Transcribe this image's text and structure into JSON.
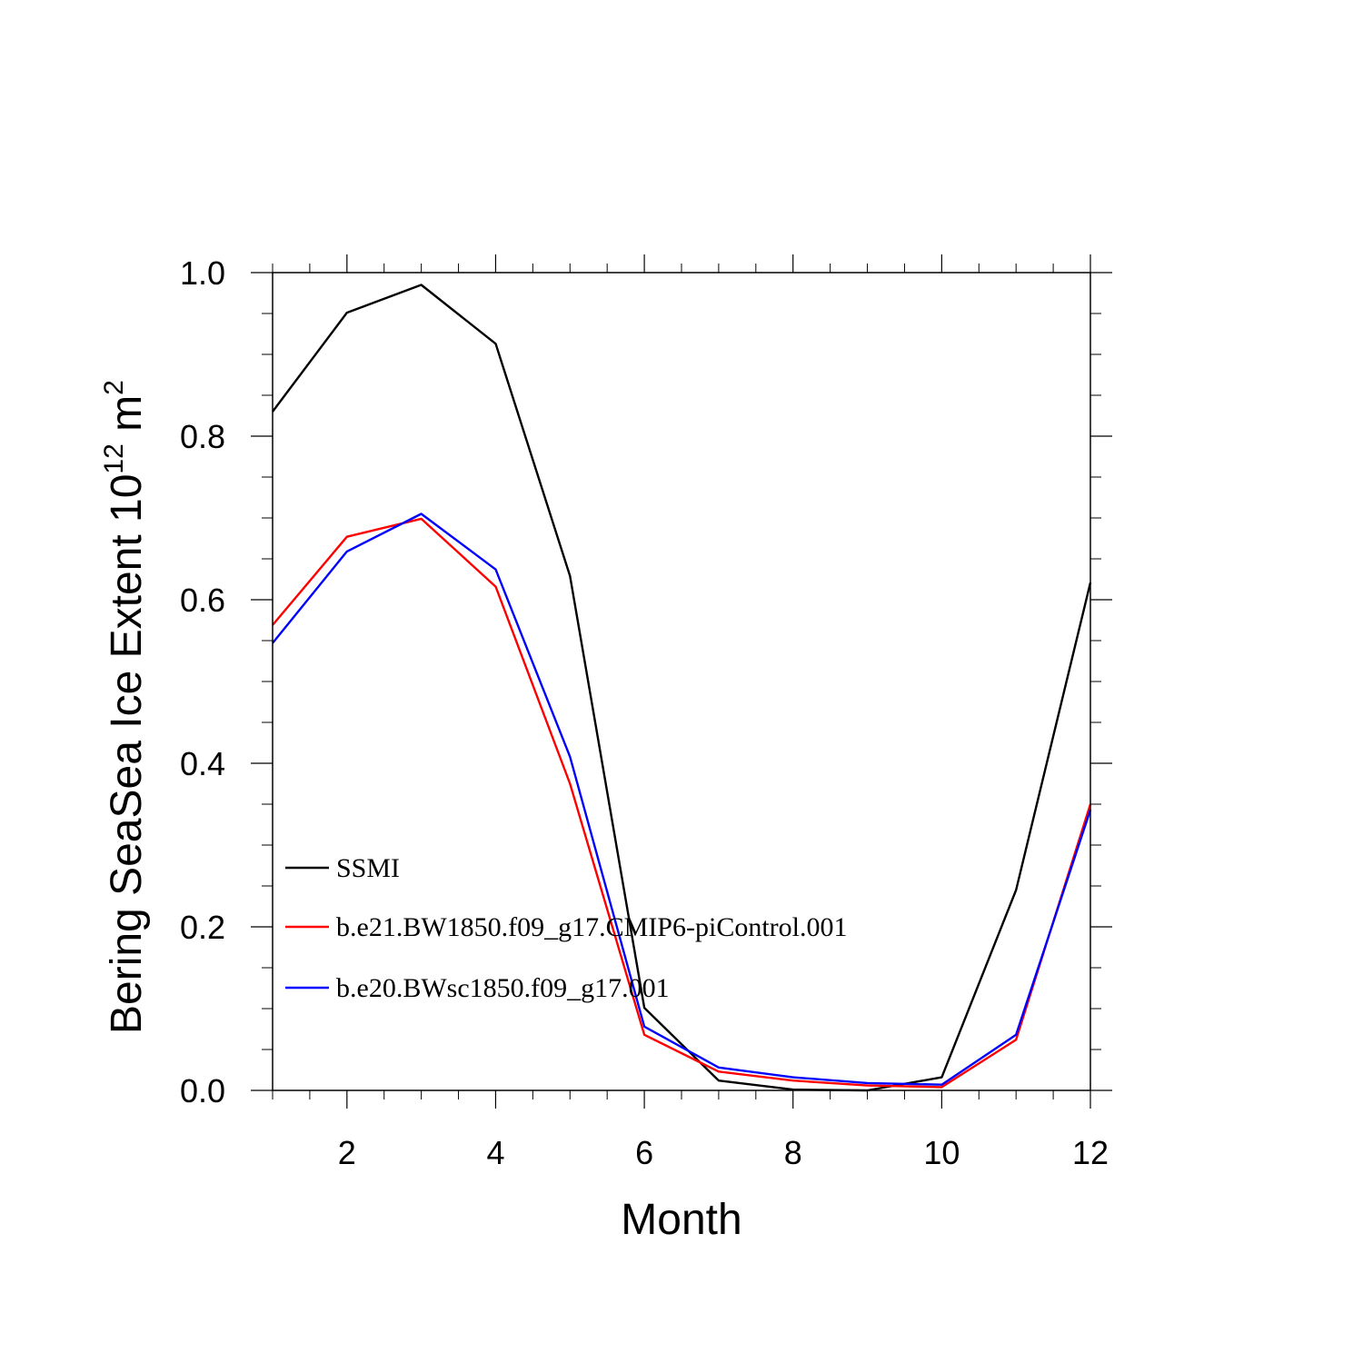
{
  "chart_data": {
    "type": "line",
    "title": "",
    "xlabel": "Month",
    "ylabel": {
      "prefix": "Bering SeaSea Ice Extent 10",
      "exponent1": "12",
      "unit": " m",
      "exponent2": "2"
    },
    "xlim": [
      1,
      12
    ],
    "ylim": [
      0,
      1
    ],
    "x_ticks": [
      2,
      4,
      6,
      8,
      10,
      12
    ],
    "x_tick_labels": [
      "2",
      "4",
      "6",
      "8",
      "10",
      "12"
    ],
    "y_ticks": [
      0,
      0.2,
      0.4,
      0.6,
      0.8,
      1.0
    ],
    "y_tick_labels": [
      "0.0",
      "0.2",
      "0.4",
      "0.6",
      "0.8",
      "1.0"
    ],
    "x": [
      1,
      2,
      3,
      4,
      5,
      6,
      7,
      8,
      9,
      10,
      11,
      12
    ],
    "series": [
      {
        "name": "SSMI",
        "color": "#000000",
        "values": [
          0.83,
          0.951,
          0.985,
          0.913,
          0.629,
          0.101,
          0.012,
          0.001,
          0.0,
          0.016,
          0.245,
          0.621
        ]
      },
      {
        "name": "b.e21.BW1850.f09_g17.CMIP6-piControl.001",
        "color": "#ff0000",
        "values": [
          0.569,
          0.677,
          0.699,
          0.616,
          0.375,
          0.068,
          0.023,
          0.012,
          0.006,
          0.004,
          0.062,
          0.35
        ]
      },
      {
        "name": "b.e20.BWsc1850.f09_g17.001",
        "color": "#0000ff",
        "values": [
          0.547,
          0.659,
          0.705,
          0.637,
          0.408,
          0.078,
          0.028,
          0.016,
          0.009,
          0.007,
          0.068,
          0.343
        ]
      }
    ],
    "grid": false,
    "legend_position": "lower-left"
  }
}
